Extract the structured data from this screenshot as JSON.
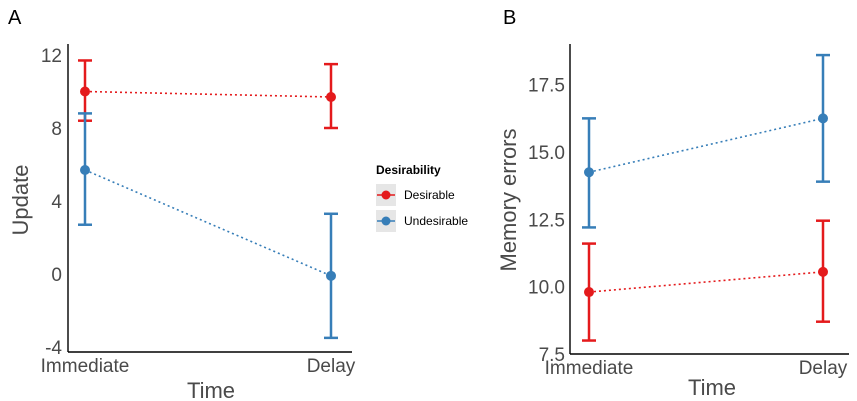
{
  "legend": {
    "title": "Desirability",
    "items": [
      {
        "label": "Desirable",
        "color": "#e41a1c"
      },
      {
        "label": "Undesirable",
        "color": "#377eb8"
      }
    ]
  },
  "chart_data": [
    {
      "panel": "A",
      "type": "line",
      "categories": [
        "Immediate",
        "Delay"
      ],
      "xlabel": "Time",
      "ylabel": "Update",
      "ylim": [
        -4,
        12
      ],
      "yticks": [
        "-4",
        "0",
        "4",
        "8",
        "12"
      ],
      "grid": false,
      "series": [
        {
          "name": "Desirable",
          "color": "#e41a1c",
          "values": [
            10.0,
            9.7
          ],
          "err_low": [
            8.4,
            8.0
          ],
          "err_high": [
            11.7,
            11.5
          ]
        },
        {
          "name": "Undesirable",
          "color": "#377eb8",
          "values": [
            5.7,
            -0.1
          ],
          "err_low": [
            2.7,
            -3.5
          ],
          "err_high": [
            8.8,
            3.3
          ]
        }
      ]
    },
    {
      "panel": "B",
      "type": "line",
      "categories": [
        "Immediate",
        "Delay"
      ],
      "xlabel": "Time",
      "ylabel": "Memory errors",
      "ylim": [
        7.5,
        18.9
      ],
      "yticks": [
        "7.5",
        "10.0",
        "12.5",
        "15.0",
        "17.5"
      ],
      "grid": false,
      "series": [
        {
          "name": "Desirable",
          "color": "#e41a1c",
          "values": [
            9.8,
            10.55
          ],
          "err_low": [
            8.0,
            8.7
          ],
          "err_high": [
            11.6,
            12.45
          ]
        },
        {
          "name": "Undesirable",
          "color": "#377eb8",
          "values": [
            14.25,
            16.25
          ],
          "err_low": [
            12.2,
            13.9
          ],
          "err_high": [
            16.25,
            18.6
          ]
        }
      ]
    }
  ]
}
